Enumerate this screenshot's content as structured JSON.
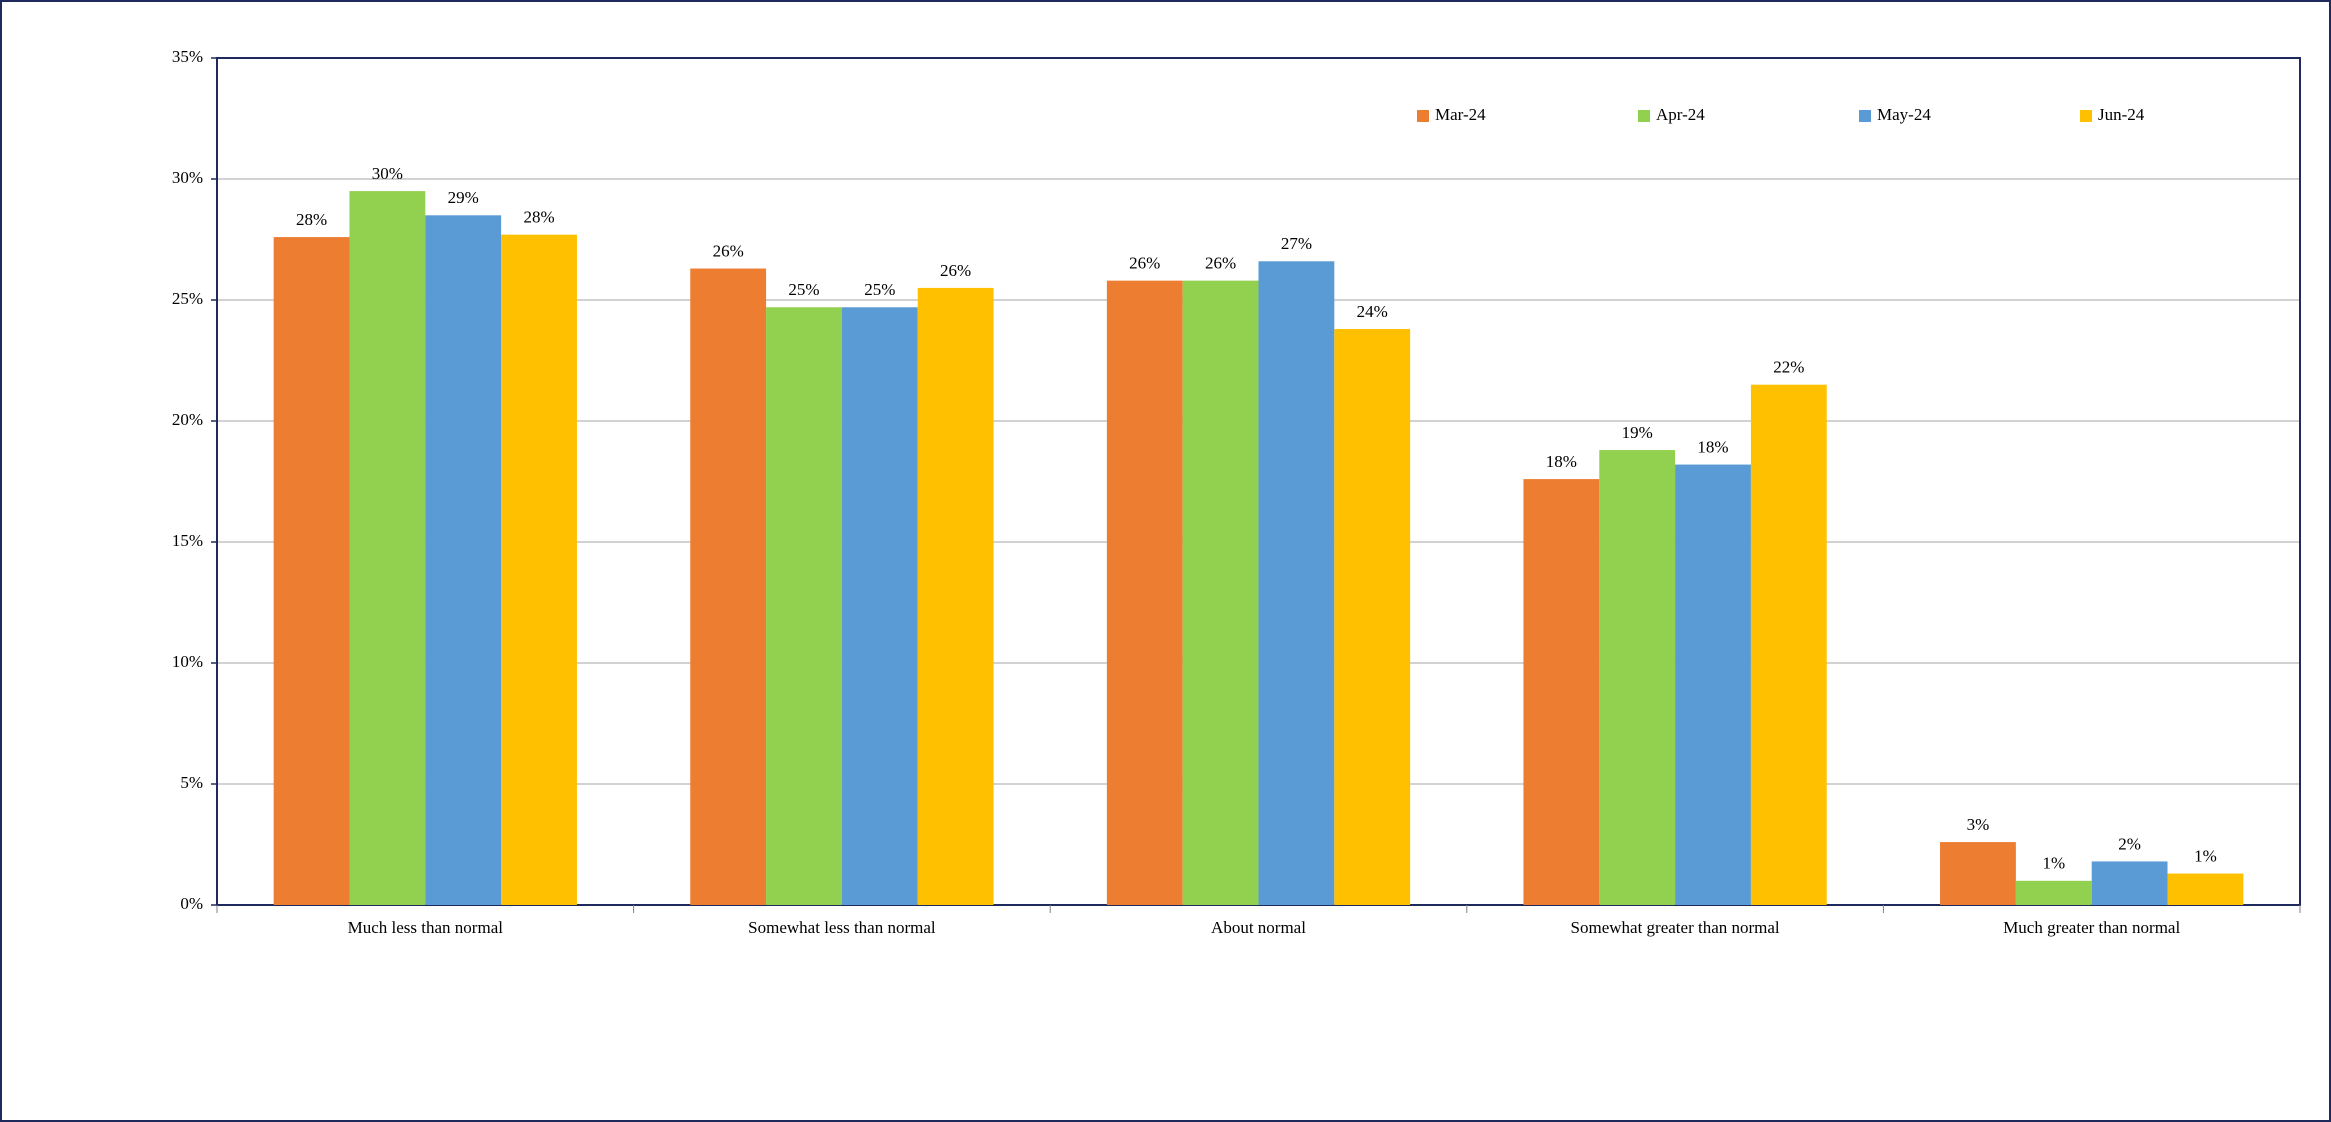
{
  "chart_data": {
    "type": "bar",
    "categories": [
      "Much less than normal",
      "Somewhat less than normal",
      "About normal",
      "Somewhat greater than normal",
      "Much greater than normal"
    ],
    "series": [
      {
        "name": "Mar-24",
        "color": "#ED7D31",
        "values": [
          27.6,
          26.3,
          25.8,
          17.6,
          2.6
        ],
        "value_labels": [
          "28%",
          "26%",
          "26%",
          "18%",
          "3%"
        ]
      },
      {
        "name": "Apr-24",
        "color": "#92D050",
        "values": [
          29.5,
          24.7,
          25.8,
          18.8,
          1.0
        ],
        "value_labels": [
          "30%",
          "25%",
          "26%",
          "19%",
          "1%"
        ]
      },
      {
        "name": "May-24",
        "color": "#5B9BD5",
        "values": [
          28.5,
          24.7,
          26.6,
          18.2,
          1.8
        ],
        "value_labels": [
          "29%",
          "25%",
          "27%",
          "18%",
          "2%"
        ]
      },
      {
        "name": "Jun-24",
        "color": "#FFC000",
        "values": [
          27.7,
          25.5,
          23.8,
          21.5,
          1.3
        ],
        "value_labels": [
          "28%",
          "26%",
          "24%",
          "22%",
          "1%"
        ]
      }
    ],
    "ylim": [
      0,
      35
    ],
    "yticks": [
      {
        "value": 0,
        "label": "0%"
      },
      {
        "value": 5,
        "label": "5%"
      },
      {
        "value": 10,
        "label": "10%"
      },
      {
        "value": 15,
        "label": "15%"
      },
      {
        "value": 20,
        "label": "20%"
      },
      {
        "value": 25,
        "label": "25%"
      },
      {
        "value": 30,
        "label": "30%"
      },
      {
        "value": 35,
        "label": "35%"
      }
    ],
    "grid": true
  }
}
